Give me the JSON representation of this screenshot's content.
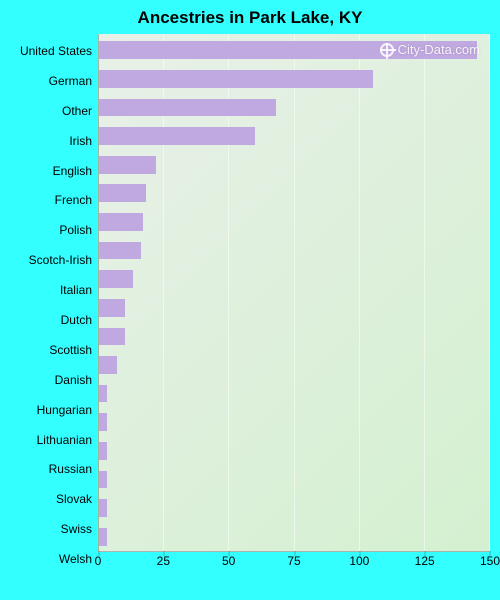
{
  "chart": {
    "type": "bar-horizontal",
    "title": "Ancestries in Park Lake, KY",
    "title_fontsize": 17,
    "title_color": "#000000",
    "page_background": "#33ffff",
    "plot_background_from": "#e8f0e8",
    "plot_background_to": "#d4f0d0",
    "gridline_color": "rgba(255,255,255,0.5)",
    "axis_line_color": "rgba(0,0,0,0.25)",
    "bar_color": "#c0a8e0",
    "label_fontsize": 12,
    "label_color": "#000000",
    "tick_fontsize": 12,
    "watermark": "City-Data.com",
    "xmax": 150,
    "xticks": [
      0,
      25,
      50,
      75,
      100,
      125,
      150
    ],
    "categories": [
      {
        "label": "United States",
        "value": 145
      },
      {
        "label": "German",
        "value": 105
      },
      {
        "label": "Other",
        "value": 68
      },
      {
        "label": "Irish",
        "value": 60
      },
      {
        "label": "English",
        "value": 22
      },
      {
        "label": "French",
        "value": 18
      },
      {
        "label": "Polish",
        "value": 17
      },
      {
        "label": "Scotch-Irish",
        "value": 16
      },
      {
        "label": "Italian",
        "value": 13
      },
      {
        "label": "Dutch",
        "value": 10
      },
      {
        "label": "Scottish",
        "value": 10
      },
      {
        "label": "Danish",
        "value": 7
      },
      {
        "label": "Hungarian",
        "value": 3
      },
      {
        "label": "Lithuanian",
        "value": 3
      },
      {
        "label": "Russian",
        "value": 3
      },
      {
        "label": "Slovak",
        "value": 3
      },
      {
        "label": "Swiss",
        "value": 3
      },
      {
        "label": "Welsh",
        "value": 3
      }
    ]
  }
}
